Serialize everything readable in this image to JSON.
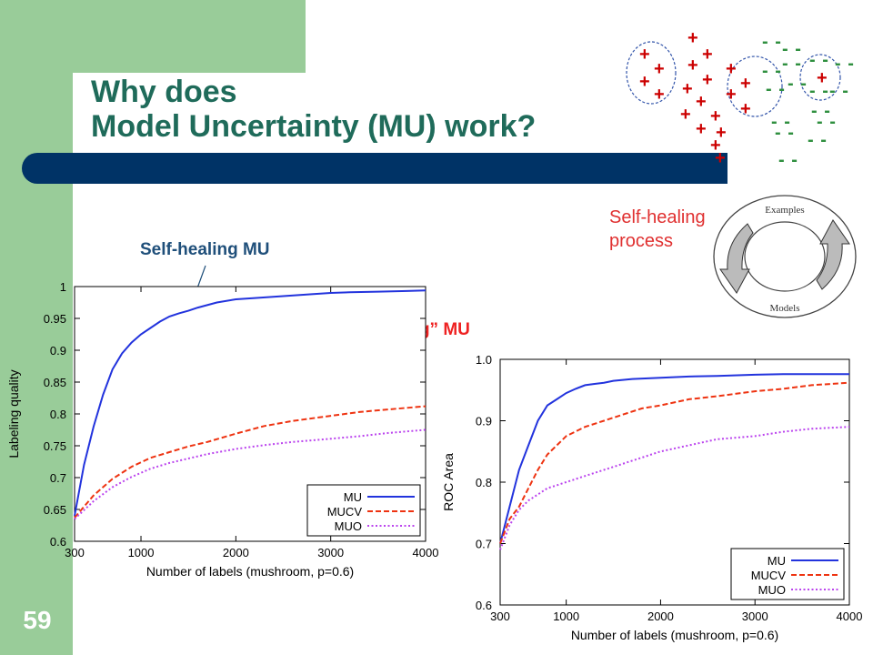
{
  "slide": {
    "title_line1": "Why does",
    "title_line2": "Model Uncertainty (MU) work?",
    "number": "59"
  },
  "annotations": {
    "self_healing_process": [
      "Self-healing",
      "process"
    ],
    "self_healing_mu": "Self-healing MU",
    "active_learning_mu": "“active learning” MU"
  },
  "cycle_diagram": {
    "top_label": "Examples",
    "bottom_label": "Models"
  },
  "decoration": {
    "plus": "+",
    "minus": "- -"
  },
  "colors": {
    "mu": "#2233dd",
    "mucv": "#ee3311",
    "muo": "#bb44ee",
    "title": "#1f6b5a",
    "bar": "#003366"
  },
  "chart_data": [
    {
      "type": "line",
      "xlabel": "Number of labels (mushroom, p=0.6)",
      "ylabel": "Labeling quality",
      "xticks": [
        300,
        1000,
        2000,
        3000,
        4000
      ],
      "yticks": [
        "0.6",
        "0.65",
        "0.7",
        "0.75",
        "0.8",
        "0.85",
        "0.9",
        "0.95",
        "1"
      ],
      "xlim": [
        300,
        4000
      ],
      "ylim": [
        0.6,
        1.0
      ],
      "legend": "bottom-right",
      "series": [
        {
          "name": "MU",
          "style": "solid",
          "x": [
            300,
            400,
            500,
            600,
            700,
            800,
            900,
            1000,
            1100,
            1200,
            1300,
            1400,
            1500,
            1600,
            1800,
            2000,
            2200,
            2500,
            2800,
            3000,
            3200,
            3500,
            3800,
            4000
          ],
          "y": [
            0.64,
            0.72,
            0.78,
            0.83,
            0.87,
            0.895,
            0.912,
            0.925,
            0.935,
            0.945,
            0.953,
            0.958,
            0.962,
            0.967,
            0.975,
            0.98,
            0.982,
            0.985,
            0.988,
            0.99,
            0.991,
            0.992,
            0.993,
            0.994
          ]
        },
        {
          "name": "MUCV",
          "style": "dashed",
          "x": [
            300,
            500,
            700,
            900,
            1100,
            1300,
            1500,
            1700,
            2000,
            2300,
            2600,
            3000,
            3300,
            3600,
            4000
          ],
          "y": [
            0.637,
            0.672,
            0.698,
            0.717,
            0.731,
            0.74,
            0.749,
            0.756,
            0.769,
            0.781,
            0.789,
            0.797,
            0.803,
            0.807,
            0.812
          ]
        },
        {
          "name": "MUO",
          "style": "dotted",
          "x": [
            300,
            500,
            700,
            900,
            1100,
            1300,
            1500,
            1700,
            2000,
            2300,
            2600,
            3000,
            3300,
            3600,
            4000
          ],
          "y": [
            0.635,
            0.663,
            0.685,
            0.701,
            0.714,
            0.723,
            0.73,
            0.737,
            0.745,
            0.751,
            0.756,
            0.761,
            0.765,
            0.77,
            0.775
          ]
        }
      ]
    },
    {
      "type": "line",
      "xlabel": "Number of labels (mushroom, p=0.6)",
      "ylabel": "ROC Area",
      "xticks": [
        300,
        1000,
        2000,
        3000,
        4000
      ],
      "yticks": [
        "0.6",
        "0.7",
        "0.8",
        "0.9",
        "1.0"
      ],
      "xlim": [
        300,
        4000
      ],
      "ylim": [
        0.6,
        1.0
      ],
      "legend": "bottom-right",
      "series": [
        {
          "name": "MU",
          "style": "solid",
          "x": [
            300,
            400,
            500,
            600,
            700,
            800,
            900,
            1000,
            1100,
            1200,
            1300,
            1400,
            1500,
            1700,
            2000,
            2300,
            2600,
            3000,
            3300,
            3600,
            4000
          ],
          "y": [
            0.7,
            0.76,
            0.82,
            0.86,
            0.9,
            0.925,
            0.935,
            0.945,
            0.952,
            0.958,
            0.96,
            0.962,
            0.965,
            0.968,
            0.97,
            0.972,
            0.973,
            0.975,
            0.976,
            0.976,
            0.976
          ]
        },
        {
          "name": "MUCV",
          "style": "dashed",
          "x": [
            300,
            400,
            500,
            600,
            700,
            800,
            900,
            1000,
            1200,
            1400,
            1600,
            1800,
            2000,
            2300,
            2600,
            3000,
            3300,
            3600,
            4000
          ],
          "y": [
            0.7,
            0.74,
            0.76,
            0.79,
            0.82,
            0.845,
            0.86,
            0.875,
            0.89,
            0.9,
            0.91,
            0.92,
            0.925,
            0.935,
            0.94,
            0.948,
            0.952,
            0.958,
            0.962
          ]
        },
        {
          "name": "MUO",
          "style": "dotted",
          "x": [
            300,
            400,
            500,
            600,
            700,
            800,
            900,
            1000,
            1200,
            1400,
            1600,
            1800,
            2000,
            2300,
            2600,
            3000,
            3300,
            3600,
            4000
          ],
          "y": [
            0.69,
            0.73,
            0.755,
            0.77,
            0.78,
            0.79,
            0.795,
            0.8,
            0.81,
            0.82,
            0.83,
            0.84,
            0.85,
            0.86,
            0.87,
            0.875,
            0.882,
            0.887,
            0.89
          ]
        }
      ]
    }
  ]
}
